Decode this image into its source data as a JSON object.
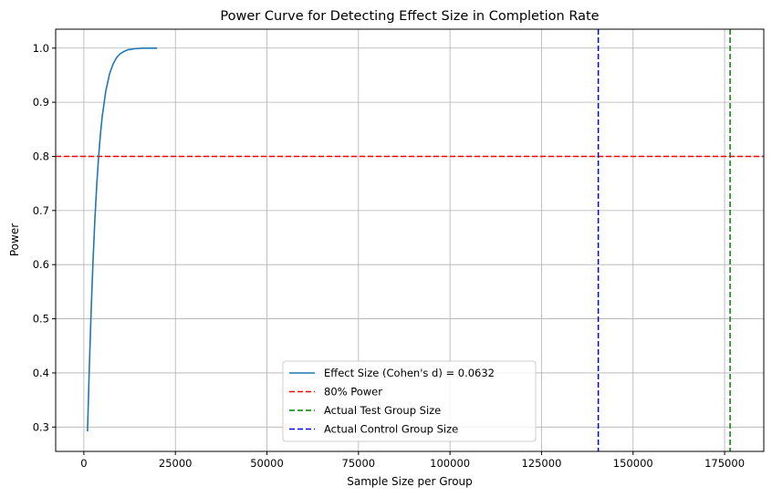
{
  "chart_data": {
    "type": "line",
    "title": "Power Curve for Detecting Effect Size in Completion Rate",
    "xlabel": "Sample Size per Group",
    "ylabel": "Power",
    "xlim": [
      -7700,
      185700
    ],
    "ylim": [
      0.255,
      1.035
    ],
    "x_ticks": [
      0,
      25000,
      50000,
      75000,
      100000,
      125000,
      150000,
      175000
    ],
    "y_ticks": [
      0.3,
      0.4,
      0.5,
      0.6,
      0.7,
      0.8,
      0.9,
      1.0
    ],
    "x_tick_labels": [
      "0",
      "25000",
      "50000",
      "75000",
      "100000",
      "125000",
      "150000",
      "175000"
    ],
    "y_tick_labels": [
      "0.3",
      "0.4",
      "0.5",
      "0.6",
      "0.7",
      "0.8",
      "0.9",
      "1.0"
    ],
    "grid": true,
    "legend_position": "bottom-center",
    "series": [
      {
        "name": "Effect Size (Cohen's d) = 0.0632",
        "color": "#1f77b4",
        "style": "solid",
        "x": [
          1000,
          1500,
          2000,
          2500,
          3000,
          3500,
          4000,
          4500,
          5000,
          6000,
          7000,
          8000,
          9000,
          10000,
          11000,
          12000,
          14000,
          16000,
          18000,
          20000
        ],
        "y": [
          0.292,
          0.412,
          0.516,
          0.606,
          0.682,
          0.745,
          0.797,
          0.839,
          0.873,
          0.921,
          0.952,
          0.971,
          0.983,
          0.99,
          0.994,
          0.997,
          0.999,
          1.0,
          1.0,
          1.0
        ]
      }
    ],
    "reference_lines": [
      {
        "name": "80% Power",
        "orientation": "horizontal",
        "value": 0.8,
        "color": "#ff0000",
        "style": "dashed"
      },
      {
        "name": "Actual Test Group Size",
        "orientation": "vertical",
        "value": 176500,
        "color": "#008000",
        "style": "dashed"
      },
      {
        "name": "Actual Control Group Size",
        "orientation": "vertical",
        "value": 140500,
        "color": "#0000ff",
        "style": "dashed"
      }
    ]
  }
}
